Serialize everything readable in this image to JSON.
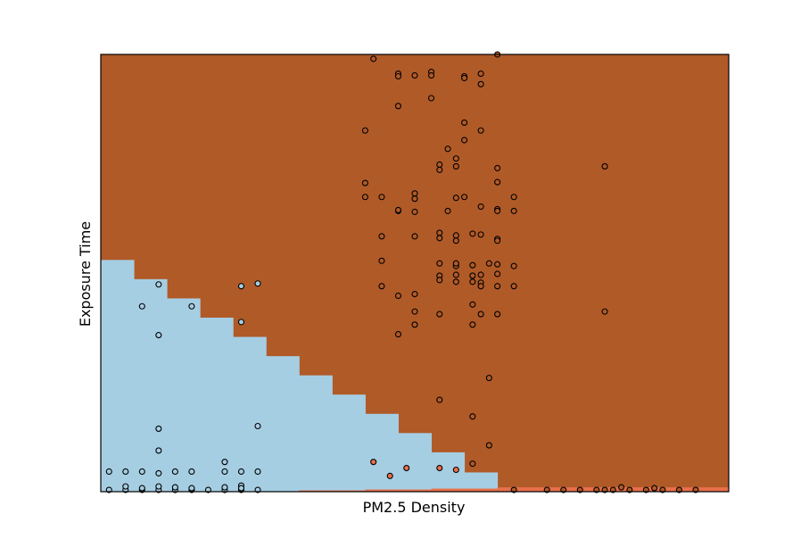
{
  "chart_data": {
    "type": "scatter",
    "xlabel": "PM2.5 Density",
    "ylabel": "Exposure Time",
    "xlim": [
      0,
      38
    ],
    "ylim": [
      0,
      100
    ],
    "grid": false,
    "ticks": "none",
    "region_colors": {
      "background": "#b05a28",
      "low": "#a6cee3",
      "band": "#e8704a"
    },
    "decision_regions": {
      "low_staircase": [
        {
          "x0": 0,
          "x1": 2,
          "top": 53
        },
        {
          "x0": 2,
          "x1": 4,
          "top": 48.6
        },
        {
          "x0": 4,
          "x1": 6,
          "top": 44.2
        },
        {
          "x0": 6,
          "x1": 8,
          "top": 39.8
        },
        {
          "x0": 8,
          "x1": 10,
          "top": 35.4
        },
        {
          "x0": 10,
          "x1": 12,
          "top": 31
        },
        {
          "x0": 12,
          "x1": 14,
          "top": 26.6
        },
        {
          "x0": 14,
          "x1": 16,
          "top": 22.2
        },
        {
          "x0": 16,
          "x1": 18,
          "top": 17.8
        },
        {
          "x0": 18,
          "x1": 20,
          "top": 13.4
        },
        {
          "x0": 20,
          "x1": 22,
          "top": 9
        },
        {
          "x0": 22,
          "x1": 24,
          "top": 4.4
        }
      ],
      "band_steps": [
        {
          "x0": 12,
          "x1": 16,
          "top": 0.3
        },
        {
          "x0": 16,
          "x1": 20,
          "top": 0.5
        },
        {
          "x0": 20,
          "x1": 24,
          "top": 0.7
        },
        {
          "x0": 24,
          "x1": 38,
          "top": 1
        }
      ]
    },
    "series": [
      {
        "color": "#a6cee3",
        "points": [
          [
            0.5,
            4.6
          ],
          [
            1.5,
            4.6
          ],
          [
            2.5,
            4.6
          ],
          [
            3.5,
            4.2
          ],
          [
            4.5,
            4.6
          ],
          [
            5.5,
            4.6
          ],
          [
            7.5,
            6.8
          ],
          [
            7.5,
            4.6
          ],
          [
            8.5,
            4.6
          ],
          [
            9.5,
            4.6
          ],
          [
            0.5,
            0.4
          ],
          [
            1.5,
            0.4
          ],
          [
            1.5,
            1.2
          ],
          [
            2.5,
            0.4
          ],
          [
            2.5,
            0.8
          ],
          [
            3.5,
            0.4
          ],
          [
            3.5,
            1.2
          ],
          [
            4.5,
            0.4
          ],
          [
            4.5,
            1
          ],
          [
            5.5,
            0.4
          ],
          [
            5.5,
            0.8
          ],
          [
            6.5,
            0.4
          ],
          [
            7.5,
            0.4
          ],
          [
            7.5,
            1
          ],
          [
            8.5,
            0.4
          ],
          [
            8.5,
            1.4
          ],
          [
            8.5,
            0.8
          ],
          [
            9.5,
            0.4
          ],
          [
            3.5,
            9.4
          ],
          [
            3.5,
            14.4
          ],
          [
            9.5,
            15
          ],
          [
            3.5,
            35.8
          ],
          [
            2.5,
            42.4
          ],
          [
            5.5,
            42.4
          ],
          [
            3.5,
            47.4
          ],
          [
            8.5,
            47
          ],
          [
            9.5,
            47.6
          ],
          [
            8.5,
            38.8
          ]
        ]
      },
      {
        "color": "#b05a28",
        "points": [
          [
            16.5,
            99
          ],
          [
            18,
            95.6
          ],
          [
            18,
            95
          ],
          [
            19,
            95.2
          ],
          [
            20,
            96
          ],
          [
            20,
            95.2
          ],
          [
            22,
            95
          ],
          [
            22,
            94.6
          ],
          [
            23,
            95.6
          ],
          [
            23,
            93.2
          ],
          [
            24,
            100
          ],
          [
            18,
            88.2
          ],
          [
            20,
            90
          ],
          [
            16,
            82.6
          ],
          [
            22,
            84.4
          ],
          [
            21,
            78.4
          ],
          [
            22,
            80.4
          ],
          [
            23,
            82.6
          ],
          [
            21.5,
            76.2
          ],
          [
            21.5,
            74.4
          ],
          [
            20.5,
            74.8
          ],
          [
            20.5,
            73.6
          ],
          [
            24,
            74
          ],
          [
            24,
            70.8
          ],
          [
            16,
            70.6
          ],
          [
            16,
            67.4
          ],
          [
            17,
            67.4
          ],
          [
            19,
            68.2
          ],
          [
            19,
            67
          ],
          [
            21,
            64.2
          ],
          [
            21.5,
            67.2
          ],
          [
            23,
            65.2
          ],
          [
            24,
            64.6
          ],
          [
            24,
            64.2
          ],
          [
            25,
            67.4
          ],
          [
            25,
            64.2
          ],
          [
            22,
            67.4
          ],
          [
            18,
            64.2
          ],
          [
            18,
            64.4
          ],
          [
            19,
            64
          ],
          [
            17,
            58.4
          ],
          [
            19,
            58.4
          ],
          [
            20.5,
            59.2
          ],
          [
            20.5,
            58
          ],
          [
            21.5,
            58.6
          ],
          [
            21.5,
            57.4
          ],
          [
            22.5,
            59
          ],
          [
            23,
            58.8
          ],
          [
            24,
            57.8
          ],
          [
            24,
            57.4
          ],
          [
            17,
            52.8
          ],
          [
            20.5,
            52.2
          ],
          [
            21.5,
            51.6
          ],
          [
            21.5,
            52.2
          ],
          [
            22.5,
            51.8
          ],
          [
            23.5,
            52.2
          ],
          [
            24,
            52
          ],
          [
            20.5,
            49.4
          ],
          [
            21.5,
            49.6
          ],
          [
            22.5,
            49.4
          ],
          [
            23,
            49.6
          ],
          [
            24,
            49.8
          ],
          [
            25,
            51.6
          ],
          [
            17,
            47
          ],
          [
            20.5,
            48.4
          ],
          [
            21.5,
            48
          ],
          [
            22.5,
            48
          ],
          [
            23,
            47.8
          ],
          [
            23,
            47
          ],
          [
            24,
            47
          ],
          [
            25,
            47
          ],
          [
            18,
            44.8
          ],
          [
            19,
            45.2
          ],
          [
            22.5,
            42.8
          ],
          [
            19,
            41.2
          ],
          [
            20.5,
            40.6
          ],
          [
            23,
            40.6
          ],
          [
            24,
            40.6
          ],
          [
            19,
            38.2
          ],
          [
            22.5,
            38.2
          ],
          [
            18,
            36
          ],
          [
            23.5,
            26
          ],
          [
            20.5,
            21
          ],
          [
            22.5,
            17.2
          ],
          [
            23.5,
            10.6
          ],
          [
            22.5,
            6.4
          ],
          [
            30.5,
            74.4
          ],
          [
            30.5,
            41.2
          ],
          [
            25,
            0.4
          ],
          [
            27,
            0.4
          ],
          [
            28,
            0.4
          ],
          [
            29,
            0.4
          ],
          [
            30,
            0.4
          ],
          [
            30.5,
            0.4
          ],
          [
            31,
            0.4
          ],
          [
            31.5,
            1
          ],
          [
            32,
            0.4
          ],
          [
            33,
            0.4
          ],
          [
            33.5,
            0.8
          ],
          [
            34,
            0.4
          ],
          [
            35,
            0.4
          ],
          [
            36,
            0.4
          ]
        ]
      },
      {
        "color": "#e8704a",
        "points": [
          [
            16.5,
            6.8
          ],
          [
            17.5,
            3.6
          ],
          [
            18.5,
            5.4
          ],
          [
            20.5,
            5.4
          ],
          [
            21.5,
            5
          ]
        ]
      }
    ]
  }
}
